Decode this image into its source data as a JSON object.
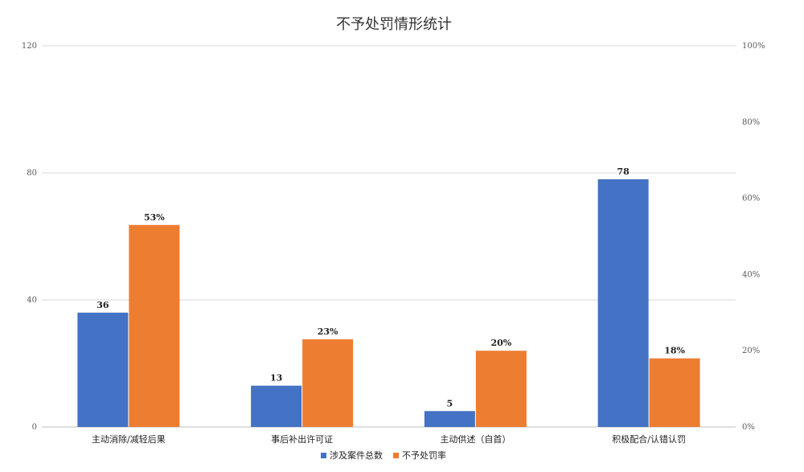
{
  "chart_data": {
    "type": "bar",
    "title": "不予处罚情形统计",
    "categories": [
      "主动消除/减轻后果",
      "事后补出许可证",
      "主动供述（自首）",
      "积极配合/认错认罚"
    ],
    "series": [
      {
        "name": "涉及案件总数",
        "axis": "left",
        "color": "#4472C4",
        "values": [
          36,
          13,
          5,
          78
        ],
        "labels": [
          "36",
          "13",
          "5",
          "78"
        ]
      },
      {
        "name": "不予处罚率",
        "axis": "right",
        "color": "#ED7D31",
        "values": [
          53,
          23,
          20,
          18
        ],
        "labels": [
          "53%",
          "23%",
          "20%",
          "18%"
        ]
      }
    ],
    "y_left": {
      "min": 0,
      "max": 120,
      "ticks": [
        "0",
        "40",
        "80",
        "120"
      ]
    },
    "y_right": {
      "min": 0,
      "max": 100,
      "ticks": [
        "0%",
        "20%",
        "40%",
        "60%",
        "80%",
        "100%"
      ]
    },
    "grid": true,
    "legend": "bottom"
  }
}
